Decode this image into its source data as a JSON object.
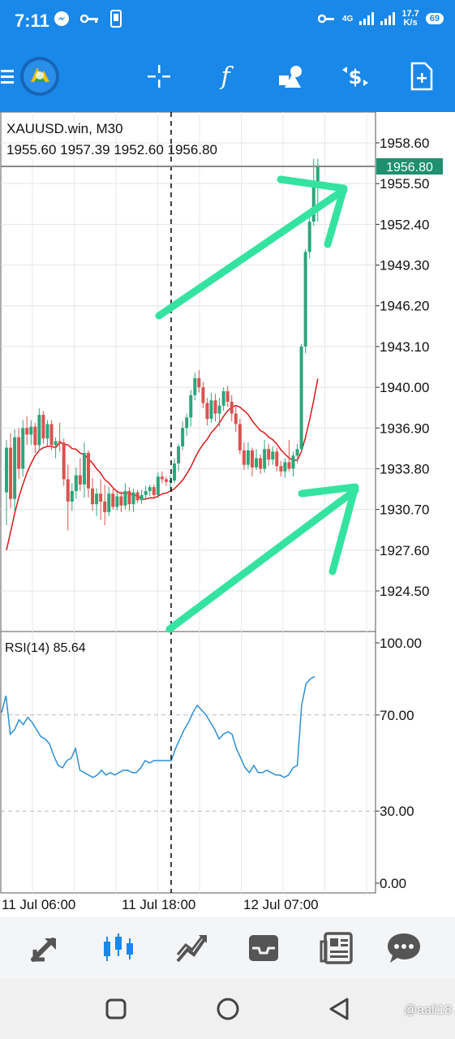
{
  "status_bar": {
    "time": "7:11",
    "network": "4G",
    "speed_value": "17.7",
    "speed_unit": "K/s",
    "battery": "69"
  },
  "toolbar": {
    "icons": [
      "menu-icon",
      "app-logo-icon",
      "crosshair-icon",
      "function-icon",
      "shapes-icon",
      "currency-icon",
      "new-order-icon"
    ]
  },
  "chart_data": {
    "type": "candlestick",
    "symbol": "XAUUSD.win, M30",
    "ohlc_text": "1955.60 1957.39 1952.60 1956.80",
    "current_price": "1956.80",
    "y_ticks": [
      "1958.60",
      "1955.50",
      "1952.40",
      "1949.30",
      "1946.20",
      "1943.10",
      "1940.00",
      "1936.90",
      "1933.80",
      "1930.70",
      "1927.60",
      "1924.50"
    ],
    "ylim": [
      1921.9,
      1960.1
    ],
    "x_ticks": [
      "11 Jul 06:00",
      "11 Jul 18:00",
      "12 Jul 07:00"
    ],
    "candles": [
      [
        1932.0,
        1936.0,
        1929.5,
        1935.4
      ],
      [
        1935.4,
        1936.5,
        1930.8,
        1931.5
      ],
      [
        1931.5,
        1936.8,
        1930.5,
        1936.2
      ],
      [
        1936.2,
        1936.9,
        1933.0,
        1933.8
      ],
      [
        1933.8,
        1937.5,
        1933.2,
        1936.9
      ],
      [
        1936.9,
        1937.8,
        1935.6,
        1936.4
      ],
      [
        1936.4,
        1937.5,
        1935.6,
        1937.0
      ],
      [
        1937.0,
        1937.3,
        1935.0,
        1935.6
      ],
      [
        1935.6,
        1938.4,
        1935.2,
        1937.9
      ],
      [
        1937.9,
        1938.2,
        1935.7,
        1936.1
      ],
      [
        1936.1,
        1937.5,
        1935.5,
        1937.2
      ],
      [
        1937.2,
        1937.5,
        1935.2,
        1935.6
      ],
      [
        1935.6,
        1936.2,
        1934.6,
        1935.9
      ],
      [
        1935.9,
        1937.3,
        1935.1,
        1935.8
      ],
      [
        1935.8,
        1936.1,
        1932.5,
        1933.0
      ],
      [
        1933.0,
        1934.1,
        1929.1,
        1931.3
      ],
      [
        1931.3,
        1932.7,
        1930.6,
        1932.1
      ],
      [
        1932.1,
        1933.9,
        1931.5,
        1933.3
      ],
      [
        1933.3,
        1934.6,
        1932.1,
        1932.6
      ],
      [
        1932.6,
        1935.8,
        1931.6,
        1935.0
      ],
      [
        1935.0,
        1935.2,
        1931.6,
        1932.3
      ],
      [
        1932.3,
        1933.1,
        1930.6,
        1931.1
      ],
      [
        1931.1,
        1932.3,
        1930.2,
        1931.9
      ],
      [
        1931.9,
        1933.0,
        1929.9,
        1931.3
      ],
      [
        1931.3,
        1932.6,
        1929.5,
        1930.5
      ],
      [
        1930.5,
        1932.4,
        1930.2,
        1931.9
      ],
      [
        1931.9,
        1932.4,
        1930.7,
        1930.9
      ],
      [
        1930.9,
        1932.0,
        1930.6,
        1931.7
      ],
      [
        1931.7,
        1932.1,
        1930.5,
        1931.0
      ],
      [
        1931.0,
        1932.7,
        1930.7,
        1932.1
      ],
      [
        1932.1,
        1932.4,
        1930.6,
        1931.1
      ],
      [
        1931.1,
        1932.3,
        1930.5,
        1932.0
      ],
      [
        1932.0,
        1932.2,
        1931.2,
        1931.4
      ],
      [
        1931.4,
        1932.2,
        1931.1,
        1931.8
      ],
      [
        1931.8,
        1932.5,
        1931.5,
        1932.1
      ],
      [
        1932.1,
        1932.6,
        1931.7,
        1932.4
      ],
      [
        1932.4,
        1932.6,
        1931.5,
        1931.8
      ],
      [
        1931.8,
        1933.5,
        1931.6,
        1933.2
      ],
      [
        1933.2,
        1933.6,
        1932.7,
        1933.0
      ],
      [
        1933.0,
        1933.2,
        1932.5,
        1932.8
      ],
      [
        1932.8,
        1933.3,
        1932.2,
        1932.9
      ],
      [
        1932.9,
        1934.6,
        1932.7,
        1934.2
      ],
      [
        1934.2,
        1935.7,
        1933.6,
        1935.5
      ],
      [
        1935.5,
        1937.4,
        1935.2,
        1936.9
      ],
      [
        1936.9,
        1938.0,
        1936.3,
        1937.7
      ],
      [
        1937.7,
        1939.8,
        1937.0,
        1939.4
      ],
      [
        1939.4,
        1941.1,
        1939.0,
        1940.7
      ],
      [
        1940.7,
        1941.3,
        1939.6,
        1940.0
      ],
      [
        1940.0,
        1940.4,
        1938.4,
        1938.8
      ],
      [
        1938.8,
        1939.2,
        1937.1,
        1937.6
      ],
      [
        1937.6,
        1939.6,
        1937.3,
        1939.0
      ],
      [
        1939.0,
        1939.5,
        1937.4,
        1938.0
      ],
      [
        1938.0,
        1939.2,
        1937.0,
        1938.6
      ],
      [
        1938.6,
        1940.0,
        1938.2,
        1939.7
      ],
      [
        1939.7,
        1940.1,
        1938.5,
        1938.9
      ],
      [
        1938.9,
        1939.4,
        1937.4,
        1938.0
      ],
      [
        1938.0,
        1938.6,
        1936.6,
        1937.2
      ],
      [
        1937.2,
        1937.6,
        1934.9,
        1935.2
      ],
      [
        1935.2,
        1935.8,
        1933.7,
        1934.1
      ],
      [
        1934.1,
        1935.8,
        1933.8,
        1935.2
      ],
      [
        1935.2,
        1935.4,
        1933.2,
        1933.9
      ],
      [
        1933.9,
        1935.3,
        1933.7,
        1934.6
      ],
      [
        1934.6,
        1934.9,
        1933.4,
        1933.8
      ],
      [
        1933.8,
        1936.0,
        1933.5,
        1935.3
      ],
      [
        1935.3,
        1935.7,
        1934.0,
        1934.5
      ],
      [
        1934.5,
        1935.5,
        1934.1,
        1935.1
      ],
      [
        1935.1,
        1935.4,
        1933.6,
        1934.0
      ],
      [
        1934.0,
        1934.4,
        1933.2,
        1933.6
      ],
      [
        1933.6,
        1934.6,
        1933.1,
        1934.3
      ],
      [
        1934.3,
        1936.0,
        1933.6,
        1933.8
      ],
      [
        1933.8,
        1935.1,
        1933.2,
        1934.8
      ],
      [
        1934.8,
        1935.7,
        1934.2,
        1935.3
      ],
      [
        1935.3,
        1943.3,
        1935.1,
        1943.1
      ],
      [
        1943.1,
        1950.5,
        1942.6,
        1950.3
      ],
      [
        1950.3,
        1953.0,
        1949.8,
        1952.6
      ],
      [
        1952.6,
        1957.4,
        1952.3,
        1955.6
      ],
      [
        1955.6,
        1957.39,
        1952.6,
        1956.8
      ]
    ],
    "ma_period": 14,
    "ma_color": "#d81818",
    "up_color": "#2da67a",
    "down_color": "#d9534f",
    "rsi": {
      "label": "RSI(14) 85.64",
      "y_ticks": [
        "100.00",
        "70.00",
        "30.00",
        "0.00"
      ],
      "levels": [
        70,
        30
      ],
      "values": [
        71,
        78,
        62,
        64,
        68,
        66,
        69,
        67,
        64,
        61,
        60,
        58,
        53,
        49,
        48,
        51,
        52,
        56,
        47,
        46,
        45,
        44,
        45,
        47,
        45,
        46,
        45,
        46,
        47,
        47,
        46,
        46,
        48,
        51,
        50,
        51,
        51,
        51,
        51,
        51,
        56,
        60,
        64,
        67,
        71,
        74,
        72,
        70,
        67,
        64,
        60,
        62,
        63,
        62,
        56,
        52,
        48,
        46,
        49,
        46,
        46,
        47,
        46,
        45,
        45,
        44,
        45,
        48,
        49,
        74,
        83,
        85,
        86
      ],
      "color": "#2a8fd6"
    },
    "annotation_color": "#35e3a0"
  },
  "bottom_nav": {
    "items": [
      "trade-icon",
      "chart-icon",
      "signals-icon",
      "inbox-icon",
      "news-icon",
      "chat-icon"
    ]
  },
  "system_nav": {
    "items": [
      "recent-apps-icon",
      "home-icon",
      "back-icon"
    ]
  },
  "watermark": "@aali18"
}
